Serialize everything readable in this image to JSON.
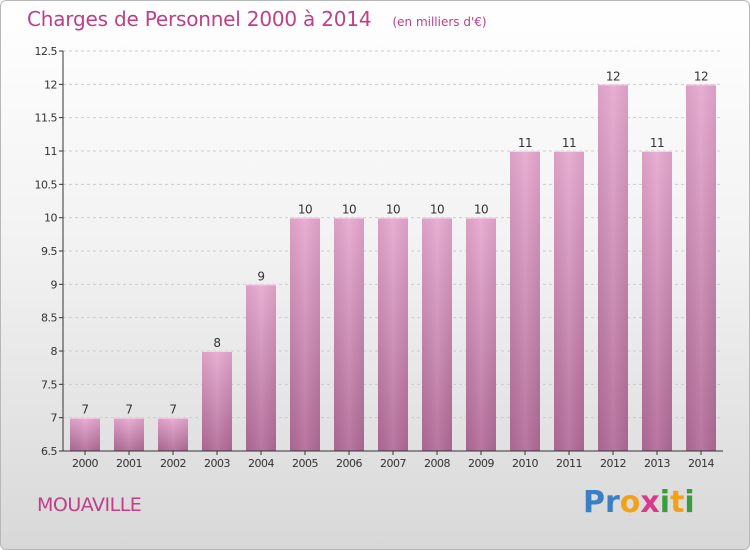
{
  "title": "Charges de Personnel 2000 à 2014",
  "unit_note": "(en milliers d'€)",
  "commune": "MOUAVILLE",
  "logo": {
    "text": "Proxiti",
    "letters": [
      {
        "ch": "P",
        "color": "#3b7fc4"
      },
      {
        "ch": "r",
        "color": "#3b7fc4"
      },
      {
        "ch": "o",
        "color": "#f2a21a"
      },
      {
        "ch": "x",
        "color": "#d93a8a"
      },
      {
        "ch": "i",
        "color": "#3a9c3a"
      },
      {
        "ch": "t",
        "color": "#f2a21a"
      },
      {
        "ch": "i",
        "color": "#3a9c3a"
      }
    ]
  },
  "colors": {
    "bar_top": "#e7a9d0",
    "bar_bottom": "#b06b97",
    "text": "#bf3f86",
    "axis": "#333333",
    "grid": "#cccccc"
  },
  "chart_data": {
    "type": "bar",
    "categories": [
      "2000",
      "2001",
      "2002",
      "2003",
      "2004",
      "2005",
      "2006",
      "2007",
      "2008",
      "2009",
      "2010",
      "2011",
      "2012",
      "2013",
      "2014"
    ],
    "values": [
      7,
      7,
      7,
      8,
      9,
      10,
      10,
      10,
      10,
      10,
      11,
      11,
      12,
      11,
      12
    ],
    "data_labels": [
      "7",
      "7",
      "7",
      "8",
      "9",
      "10",
      "10",
      "10",
      "10",
      "10",
      "11",
      "11",
      "12",
      "11",
      "12"
    ],
    "ylim": [
      6.5,
      12.5
    ],
    "y_ticks": [
      6.5,
      7,
      7.5,
      8,
      8.5,
      9,
      9.5,
      10,
      10.5,
      11,
      11.5,
      12,
      12.5
    ],
    "y_tick_labels": [
      "6.5",
      "7",
      "7.5",
      "8",
      "8.5",
      "9",
      "9.5",
      "10",
      "10.5",
      "11",
      "11.5",
      "12",
      "12.5"
    ],
    "grid": "horizontal dashed",
    "xlabel": "",
    "ylabel": ""
  }
}
